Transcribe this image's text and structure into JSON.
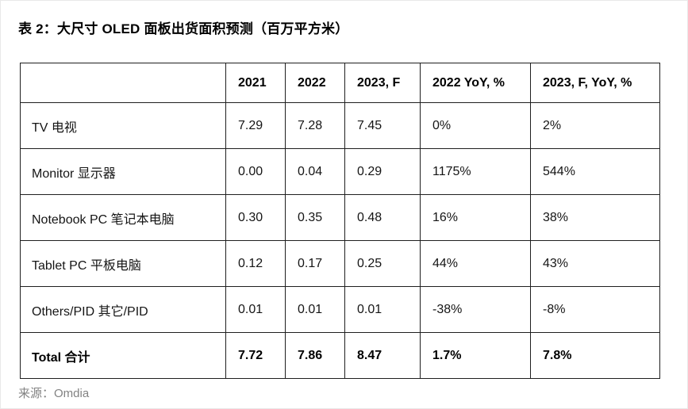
{
  "page": {
    "title": "表 2：大尺寸 OLED 面板出货面积预测（百万平方米）",
    "source": "来源：Omdia"
  },
  "chart_data": {
    "type": "table",
    "title": "表 2：大尺寸 OLED 面板出货面积预测（百万平方米）",
    "unit": "百万平方米",
    "columns": [
      "",
      "2021",
      "2022",
      "2023, F",
      "2022 YoY, %",
      "2023, F, YoY, %"
    ],
    "rows": [
      {
        "label": "TV 电视",
        "values": [
          "7.29",
          "7.28",
          "7.45",
          "0%",
          "2%"
        ]
      },
      {
        "label": "Monitor 显示器",
        "values": [
          "0.00",
          "0.04",
          "0.29",
          "1175%",
          "544%"
        ]
      },
      {
        "label": "Notebook PC 笔记本电脑",
        "values": [
          "0.30",
          "0.35",
          "0.48",
          "16%",
          "38%"
        ]
      },
      {
        "label": "Tablet PC 平板电脑",
        "values": [
          "0.12",
          "0.17",
          "0.25",
          "44%",
          "43%"
        ]
      },
      {
        "label": "Others/PID 其它/PID",
        "values": [
          "0.01",
          "0.01",
          "0.01",
          "-38%",
          "-8%"
        ]
      },
      {
        "label": "Total 合计",
        "values": [
          "7.72",
          "7.86",
          "8.47",
          "1.7%",
          "7.8%"
        ],
        "emphasis": true
      }
    ],
    "source": "来源：Omdia"
  }
}
